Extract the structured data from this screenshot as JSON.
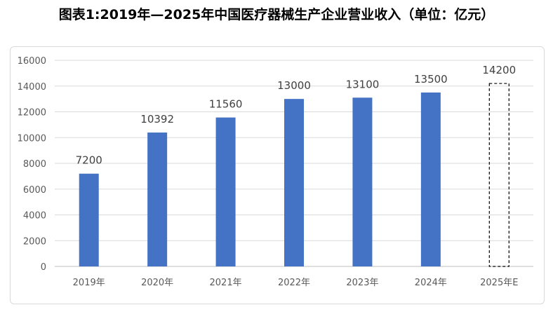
{
  "chart_data": {
    "type": "bar",
    "title": "图表1:2019年—2025年中国医疗器械生产企业营业收入（单位：亿元）",
    "categories": [
      "2019年",
      "2020年",
      "2021年",
      "2022年",
      "2023年",
      "2024年",
      "2025年E"
    ],
    "values": [
      7200,
      10392,
      11560,
      13000,
      13100,
      13500,
      14200
    ],
    "estimated": [
      false,
      false,
      false,
      false,
      false,
      false,
      true
    ],
    "ylim": [
      0,
      16000
    ],
    "yticks": [
      0,
      2000,
      4000,
      6000,
      8000,
      10000,
      12000,
      14000,
      16000
    ],
    "xlabel": "",
    "ylabel": "",
    "grid": true,
    "legend": "none",
    "colors": {
      "bar": "#4472C4",
      "estimate_border": "#000000",
      "grid": "#d9d9d9"
    }
  }
}
